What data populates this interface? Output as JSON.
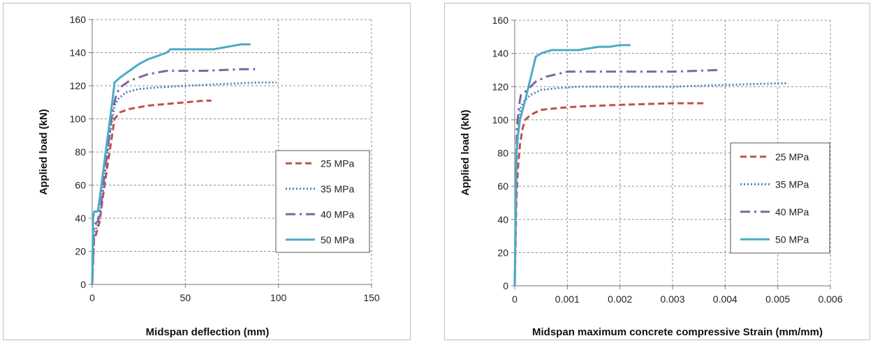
{
  "chart_data": [
    {
      "type": "line",
      "title": "",
      "xlabel": "Midspan deflection  (mm)",
      "ylabel": "Applied load (kN)",
      "xlim": [
        0,
        150
      ],
      "ylim": [
        0,
        160
      ],
      "xticks": [
        "0",
        "50",
        "100",
        "150"
      ],
      "yticks": [
        "0",
        "20",
        "40",
        "60",
        "80",
        "100",
        "120",
        "140",
        "160"
      ],
      "grid": true,
      "legend_position": "right-middle",
      "series": [
        {
          "name": "25 MPa",
          "color": "#c0504d",
          "dash": "dashed",
          "x": [
            0,
            1,
            2,
            4,
            6,
            8,
            10,
            12,
            15,
            20,
            30,
            40,
            50,
            60,
            64
          ],
          "y": [
            0,
            28,
            30,
            38,
            55,
            70,
            85,
            100,
            104,
            106,
            108,
            109,
            110,
            111,
            111
          ]
        },
        {
          "name": "35 MPa",
          "color": "#4f81bd",
          "dash": "dotted",
          "x": [
            0,
            1,
            2,
            4,
            6,
            8,
            10,
            12,
            14,
            18,
            25,
            35,
            50,
            70,
            90,
            99
          ],
          "y": [
            0,
            30,
            33,
            40,
            60,
            78,
            95,
            108,
            112,
            116,
            118,
            119,
            120,
            121,
            122,
            122
          ]
        },
        {
          "name": "40 MPa",
          "color": "#8064a2",
          "dash": "dashdot",
          "x": [
            0,
            1,
            3,
            5,
            7,
            9,
            11,
            13,
            15,
            20,
            30,
            40,
            60,
            80,
            89
          ],
          "y": [
            0,
            36,
            38,
            50,
            70,
            88,
            105,
            115,
            119,
            123,
            127,
            129,
            129,
            130,
            130
          ]
        },
        {
          "name": "50 MPa",
          "color": "#4bacc6",
          "dash": "solid",
          "x": [
            0,
            0.5,
            1,
            3,
            5,
            7,
            9,
            11,
            12,
            15,
            20,
            25,
            30,
            35,
            40,
            42,
            45,
            55,
            65,
            70,
            75,
            80,
            85
          ],
          "y": [
            0,
            40,
            44,
            44,
            60,
            78,
            95,
            112,
            122,
            125,
            129,
            133,
            136,
            138,
            140,
            142,
            142,
            142,
            142,
            143,
            144,
            145,
            145
          ]
        }
      ]
    },
    {
      "type": "line",
      "title": "",
      "xlabel": "Midspan maximum concrete compressive Strain (mm/mm)",
      "ylabel": "Applied load (kN)",
      "xlim": [
        0,
        0.006
      ],
      "ylim": [
        0,
        160
      ],
      "xticks": [
        "0",
        "0.001",
        "0.002",
        "0.003",
        "0.004",
        "0.005",
        "0.006"
      ],
      "yticks": [
        "0",
        "20",
        "40",
        "60",
        "80",
        "100",
        "120",
        "140",
        "160"
      ],
      "grid": true,
      "legend_position": "right-middle",
      "series": [
        {
          "name": "25 MPa",
          "color": "#c0504d",
          "dash": "dashed",
          "x": [
            0,
            3e-05,
            6e-05,
            0.0001,
            0.00015,
            0.0002,
            0.0003,
            0.0005,
            0.0008,
            0.0012,
            0.002,
            0.003,
            0.0036
          ],
          "y": [
            0,
            50,
            70,
            85,
            95,
            100,
            103,
            106,
            107,
            108,
            109,
            110,
            110
          ]
        },
        {
          "name": "35 MPa",
          "color": "#4f81bd",
          "dash": "dotted",
          "x": [
            0,
            4e-05,
            8e-05,
            0.00012,
            0.0002,
            0.0003,
            0.0005,
            0.0008,
            0.0012,
            0.002,
            0.003,
            0.004,
            0.005,
            0.0052
          ],
          "y": [
            0,
            80,
            100,
            108,
            112,
            115,
            118,
            119,
            120,
            120,
            120,
            121,
            122,
            122
          ]
        },
        {
          "name": "40 MPa",
          "color": "#8064a2",
          "dash": "dashdot",
          "x": [
            0,
            4e-05,
            7e-05,
            0.0001,
            0.00012,
            0.0002,
            0.0003,
            0.0004,
            0.0006,
            0.001,
            0.002,
            0.003,
            0.0039
          ],
          "y": [
            0,
            95,
            105,
            112,
            115,
            117,
            120,
            123,
            126,
            129,
            129,
            129,
            130
          ]
        },
        {
          "name": "50 MPa",
          "color": "#4bacc6",
          "dash": "solid",
          "x": [
            0,
            3e-05,
            6e-05,
            0.0001,
            0.0002,
            0.0003,
            0.0004,
            0.0005,
            0.0006,
            0.0007,
            0.001,
            0.0012,
            0.0014,
            0.0016,
            0.0018,
            0.002,
            0.0022
          ],
          "y": [
            0,
            80,
            90,
            100,
            112,
            125,
            138,
            140,
            141,
            142,
            142,
            142,
            143,
            144,
            144,
            145,
            145
          ]
        }
      ]
    }
  ]
}
